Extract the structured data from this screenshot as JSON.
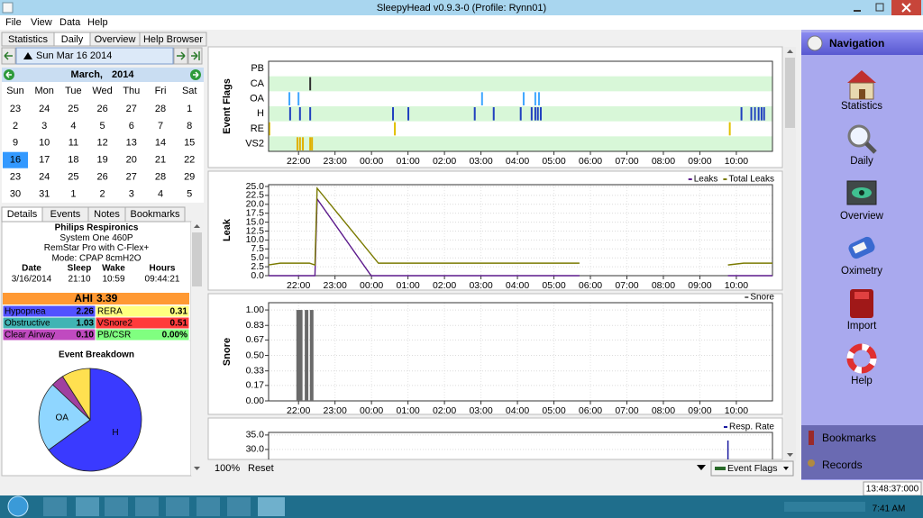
{
  "window": {
    "title": "SleepyHead v0.9.3-0  (Profile: Rynn01)"
  },
  "menu": [
    "File",
    "View",
    "Data",
    "Help"
  ],
  "tabs": [
    "Statistics",
    "Daily",
    "Overview",
    "Help Browser"
  ],
  "date_bar": {
    "date": "Sun Mar 16 2014"
  },
  "calendar": {
    "month": "March,",
    "year": "2014",
    "weekdays": [
      "Sun",
      "Mon",
      "Tue",
      "Wed",
      "Thu",
      "Fri",
      "Sat"
    ],
    "weeks": [
      [
        23,
        24,
        25,
        26,
        27,
        28,
        1
      ],
      [
        2,
        3,
        4,
        5,
        6,
        7,
        8
      ],
      [
        9,
        10,
        11,
        12,
        13,
        14,
        15
      ],
      [
        16,
        17,
        18,
        19,
        20,
        21,
        22
      ],
      [
        23,
        24,
        25,
        26,
        27,
        28,
        29
      ],
      [
        30,
        31,
        1,
        2,
        3,
        4,
        5
      ]
    ],
    "selected": 16
  },
  "detail_tabs": [
    "Details",
    "Events",
    "Notes",
    "Bookmarks"
  ],
  "machine": [
    "Philips Respironics",
    "System One 460P",
    "RemStar Pro with C-Flex+",
    "Mode: CPAP 8cmH2O"
  ],
  "session": {
    "headers": [
      "Date",
      "Sleep",
      "Wake",
      "Hours"
    ],
    "values": [
      "3/16/2014",
      "21:10",
      "10:59",
      "09:44:21"
    ]
  },
  "ahi": {
    "label": "AHI",
    "value": "3.39"
  },
  "indices": [
    {
      "name": "Hypopnea",
      "value": "2.26",
      "color": "#5252ff"
    },
    {
      "name": "RERA",
      "value": "0.31",
      "color": "#ffff80"
    },
    {
      "name": "Obstructive",
      "value": "1.03",
      "color": "#40b4b4"
    },
    {
      "name": "VSnore2",
      "value": "0.51",
      "color": "#ff3b3b"
    },
    {
      "name": "Clear Airway",
      "value": "0.10",
      "color": "#c04ac0"
    },
    {
      "name": "PB/CSR",
      "value": "0.00%",
      "color": "#80ff80"
    }
  ],
  "event_breakdown": {
    "title": "Event Breakdown",
    "type": "pie",
    "labels": [
      "H",
      "OA",
      null,
      null
    ],
    "values": [
      65,
      22,
      4,
      9
    ],
    "colors": [
      "#3a3aff",
      "#8fd6ff",
      "#a040a0",
      "#ffe050"
    ]
  },
  "time_axis": {
    "xlim": [
      21.18,
      34.99
    ],
    "xticks": [
      {
        "value": 22,
        "label": "22:00"
      },
      {
        "value": 23,
        "label": "23:00"
      },
      {
        "value": 24,
        "label": "00:00"
      },
      {
        "value": 25,
        "label": "01:00"
      },
      {
        "value": 26,
        "label": "02:00"
      },
      {
        "value": 27,
        "label": "03:00"
      },
      {
        "value": 28,
        "label": "04:00"
      },
      {
        "value": 29,
        "label": "05:00"
      },
      {
        "value": 30,
        "label": "06:00"
      },
      {
        "value": 31,
        "label": "07:00"
      },
      {
        "value": 32,
        "label": "08:00"
      },
      {
        "value": 33,
        "label": "09:00"
      },
      {
        "value": 34,
        "label": "10:00"
      }
    ]
  },
  "event_flags": {
    "ylabel": "Event Flags",
    "rows": [
      {
        "name": "PB",
        "color": "#606060",
        "x": []
      },
      {
        "name": "CA",
        "color": "#303030",
        "x": [
          22.32
        ]
      },
      {
        "name": "OA",
        "color": "#3ea6ff",
        "x": [
          21.75,
          22.0,
          27.03,
          28.17,
          28.49,
          28.59
        ]
      },
      {
        "name": "H",
        "color": "#1f3fbf",
        "x": [
          21.77,
          22.04,
          22.32,
          24.59,
          25.01,
          26.83,
          27.35,
          28.09,
          28.39,
          28.49,
          28.56,
          28.64,
          34.14,
          34.41,
          34.51,
          34.61,
          34.69,
          34.76
        ]
      },
      {
        "name": "RE",
        "color": "#e0c000",
        "x": [
          21.2,
          24.64,
          33.82
        ]
      },
      {
        "name": "VS2",
        "color": "#e0b000",
        "x": [
          21.97,
          22.04,
          22.12,
          22.32,
          22.37
        ]
      }
    ]
  },
  "leak": {
    "type": "line",
    "ylabel": "Leak",
    "grid": true,
    "ylim": [
      0,
      25.5
    ],
    "yticks": [
      {
        "value": 0,
        "label": "0.0"
      },
      2.5,
      {
        "value": 5,
        "label": "5.0"
      },
      7.5,
      {
        "value": 10,
        "label": "10.0"
      },
      12.5,
      {
        "value": 15,
        "label": "15.0"
      },
      17.5,
      {
        "value": 20,
        "label": "20.0"
      },
      22.5,
      {
        "value": 25,
        "label": "25.0"
      }
    ],
    "series": [
      {
        "name": "Leaks",
        "color": "#5c1a8c",
        "x": [
          21.18,
          22.45,
          22.51,
          23.99,
          29.7,
          31.7,
          33.77,
          34.99
        ],
        "values": [
          0,
          0,
          21.5,
          0,
          0,
          null,
          0,
          0
        ]
      },
      {
        "name": "Total Leaks",
        "color": "#7a7a00",
        "x": [
          21.18,
          21.5,
          22.3,
          22.45,
          22.51,
          24.19,
          29.7,
          31.7,
          33.77,
          34.2,
          34.99
        ],
        "values": [
          3.0,
          3.5,
          3.5,
          3.0,
          24.5,
          3.5,
          3.5,
          null,
          3.0,
          3.5,
          3.5
        ]
      }
    ]
  },
  "snore": {
    "type": "bar",
    "grid": true,
    "ylabel": "Snore",
    "ylim": [
      0,
      1.08
    ],
    "yticks": [
      {
        "value": 0,
        "label": "0.00"
      },
      {
        "value": 0.17,
        "label": "0.17"
      },
      {
        "value": 0.33,
        "label": "0.33"
      },
      {
        "value": 0.5,
        "label": "0.50"
      },
      {
        "value": 0.67,
        "label": "0.67"
      },
      {
        "value": 0.83,
        "label": "0.83"
      },
      {
        "value": 1,
        "label": "1.00"
      }
    ],
    "series": [
      {
        "name": "Snore",
        "color": "#6a6a6a",
        "x": [
          21.99,
          22.06,
          22.22,
          22.36
        ],
        "values": [
          1,
          1,
          1,
          1
        ]
      }
    ]
  },
  "resp_rate": {
    "type": "spike",
    "grid": true,
    "ylim": [
      0,
      35.9
    ],
    "yticks": [
      {
        "value": 30,
        "label": "30.0"
      },
      {
        "value": 35,
        "label": "35.0"
      }
    ],
    "series": [
      {
        "name": "Resp. Rate",
        "color": "#1a1aa0",
        "x": [
          33.77
        ],
        "values": [
          33.1
        ]
      }
    ]
  },
  "footer": {
    "zoom": "100%",
    "reset": "Reset",
    "graph_select": "Event Flags"
  },
  "navigation": {
    "title": "Navigation",
    "items": [
      "Statistics",
      "Daily",
      "Overview",
      "Oximetry",
      "Import",
      "Help"
    ],
    "bookmarks": "Bookmarks",
    "records": "Records"
  },
  "status": {
    "time": "13:48:37:000"
  },
  "taskbar": {
    "clock": "7:41 AM"
  }
}
